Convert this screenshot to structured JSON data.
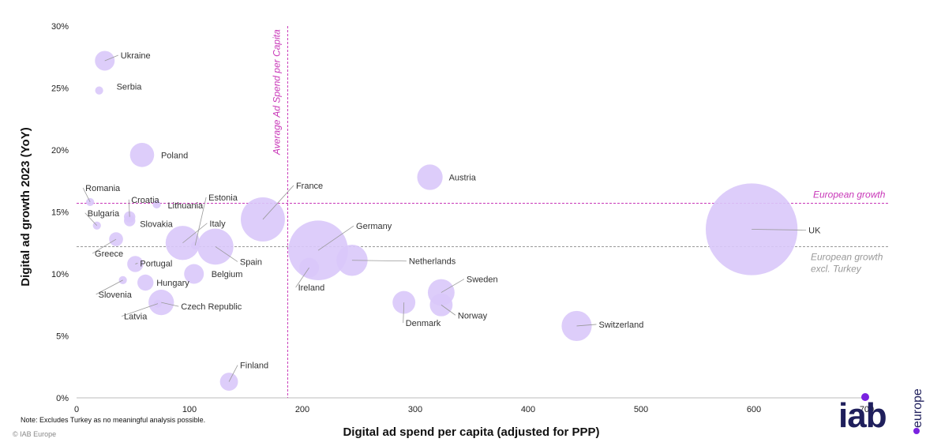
{
  "chart_data": {
    "type": "scatter",
    "xlabel": "Digital ad spend per capita (adjusted for PPP)",
    "ylabel": "Digital ad growth 2023 (YoY)",
    "xlim": [
      0,
      700
    ],
    "ylim": [
      0,
      0.3
    ],
    "x_ticks": [
      0,
      100,
      200,
      300,
      400,
      500,
      600,
      700
    ],
    "x_tick_labels": [
      "0",
      "100",
      "200",
      "300",
      "400",
      "500",
      "600",
      "700"
    ],
    "y_ticks": [
      0,
      0.05,
      0.1,
      0.15,
      0.2,
      0.25,
      0.3
    ],
    "y_tick_labels": [
      "0%",
      "5%",
      "10%",
      "15%",
      "20%",
      "25%",
      "30%"
    ],
    "bubble_color": "#d9c8fa",
    "points": [
      {
        "name": "Ukraine",
        "x": 25,
        "y": 0.272,
        "size": 6
      },
      {
        "name": "Serbia",
        "x": 20,
        "y": 0.248,
        "size": 1
      },
      {
        "name": "Poland",
        "x": 58,
        "y": 0.196,
        "size": 9
      },
      {
        "name": "Romania",
        "x": 12,
        "y": 0.158,
        "size": 1
      },
      {
        "name": "Croatia",
        "x": 47,
        "y": 0.146,
        "size": 2
      },
      {
        "name": "Lithuania",
        "x": 71,
        "y": 0.156,
        "size": 1
      },
      {
        "name": "Slovakia",
        "x": 47,
        "y": 0.143,
        "size": 2
      },
      {
        "name": "Bulgaria",
        "x": 18,
        "y": 0.139,
        "size": 1
      },
      {
        "name": "Estonia",
        "x": 105,
        "y": 0.123,
        "size": 1
      },
      {
        "name": "Italy",
        "x": 94,
        "y": 0.125,
        "size": 18
      },
      {
        "name": "Greece",
        "x": 35,
        "y": 0.128,
        "size": 3
      },
      {
        "name": "Portugal",
        "x": 52,
        "y": 0.108,
        "size": 4
      },
      {
        "name": "Spain",
        "x": 123,
        "y": 0.122,
        "size": 20
      },
      {
        "name": "France",
        "x": 165,
        "y": 0.144,
        "size": 30
      },
      {
        "name": "Belgium",
        "x": 104,
        "y": 0.1,
        "size": 6
      },
      {
        "name": "Hungary",
        "x": 61,
        "y": 0.093,
        "size": 4
      },
      {
        "name": "Slovenia",
        "x": 41,
        "y": 0.095,
        "size": 1
      },
      {
        "name": "Czech Republic",
        "x": 75,
        "y": 0.077,
        "size": 10
      },
      {
        "name": "Latvia",
        "x": 72,
        "y": 0.076,
        "size": 1
      },
      {
        "name": "Finland",
        "x": 135,
        "y": 0.013,
        "size": 5
      },
      {
        "name": "Germany",
        "x": 214,
        "y": 0.119,
        "size": 55
      },
      {
        "name": "Ireland",
        "x": 206,
        "y": 0.105,
        "size": 6
      },
      {
        "name": "Netherlands",
        "x": 244,
        "y": 0.111,
        "size": 15
      },
      {
        "name": "Austria",
        "x": 313,
        "y": 0.178,
        "size": 10
      },
      {
        "name": "Sweden",
        "x": 323,
        "y": 0.085,
        "size": 11
      },
      {
        "name": "Norway",
        "x": 323,
        "y": 0.075,
        "size": 8
      },
      {
        "name": "Denmark",
        "x": 290,
        "y": 0.077,
        "size": 8
      },
      {
        "name": "Switzerland",
        "x": 443,
        "y": 0.058,
        "size": 14
      },
      {
        "name": "UK",
        "x": 598,
        "y": 0.136,
        "size": 130
      }
    ],
    "reference_lines": [
      {
        "orientation": "vertical",
        "x": 187,
        "label": "Average Ad Spend per Capita",
        "color": "#c837b8"
      },
      {
        "orientation": "horizontal",
        "y": 0.157,
        "label": "European growth",
        "color": "#c837b8"
      },
      {
        "orientation": "horizontal",
        "y": 0.122,
        "label": "European growth excl. Turkey",
        "color": "#999999"
      }
    ]
  },
  "footer": {
    "note": "Note: Excludes Turkey as no meaningful analysis possible.",
    "copyright": "© IAB Europe"
  },
  "logo": {
    "brand": "iab",
    "region": "europe",
    "brand_color": "#1f1f5c",
    "accent_color": "#7a22e0"
  }
}
